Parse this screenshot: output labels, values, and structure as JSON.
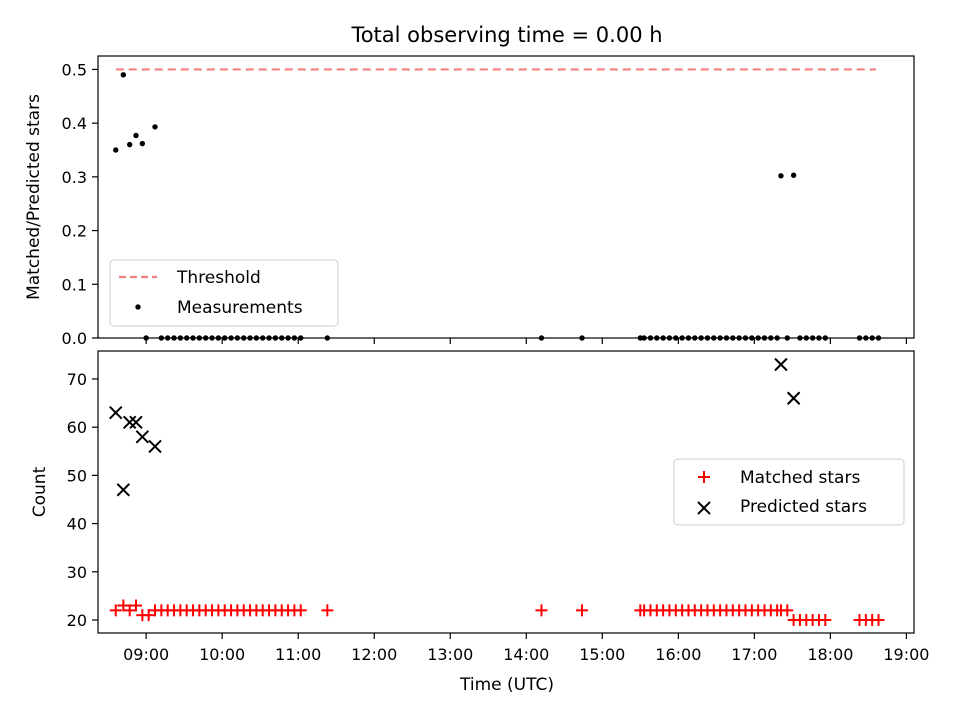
{
  "chart_data": [
    {
      "type": "scatter",
      "title": "Total observing time = 0.00 h",
      "xlabel": "",
      "ylabel": "Matched/Predicted stars",
      "xlim": [
        "08:22",
        "19:06"
      ],
      "ylim": [
        0,
        0.525
      ],
      "x_ticks": [
        "09:00",
        "10:00",
        "11:00",
        "12:00",
        "13:00",
        "14:00",
        "15:00",
        "16:00",
        "17:00",
        "18:00",
        "19:00"
      ],
      "y_ticks": [
        "0.0",
        "0.1",
        "0.2",
        "0.3",
        "0.4",
        "0.5"
      ],
      "legend_position": "lower-left",
      "grid": false,
      "threshold": {
        "name": "Threshold",
        "value": 0.5,
        "x": [
          "08:36",
          "18:36"
        ],
        "color": "#f08080",
        "style": "dashed"
      },
      "series": [
        {
          "name": "Measurements",
          "color": "#000000",
          "marker": "dot",
          "points": [
            [
              "08:36",
              0.35
            ],
            [
              "08:42",
              0.49
            ],
            [
              "08:47",
              0.36
            ],
            [
              "08:52",
              0.377
            ],
            [
              "08:57",
              0.362
            ],
            [
              "09:07",
              0.393
            ],
            [
              "09:00",
              0.0
            ],
            [
              "09:12",
              0.0
            ],
            [
              "09:17",
              0.0
            ],
            [
              "09:22",
              0.0
            ],
            [
              "09:27",
              0.0
            ],
            [
              "09:32",
              0.0
            ],
            [
              "09:37",
              0.0
            ],
            [
              "09:42",
              0.0
            ],
            [
              "09:47",
              0.0
            ],
            [
              "09:52",
              0.0
            ],
            [
              "09:57",
              0.0
            ],
            [
              "10:02",
              0.0
            ],
            [
              "10:07",
              0.0
            ],
            [
              "10:12",
              0.0
            ],
            [
              "10:17",
              0.0
            ],
            [
              "10:22",
              0.0
            ],
            [
              "10:27",
              0.0
            ],
            [
              "10:32",
              0.0
            ],
            [
              "10:37",
              0.0
            ],
            [
              "10:42",
              0.0
            ],
            [
              "10:47",
              0.0
            ],
            [
              "10:52",
              0.0
            ],
            [
              "10:57",
              0.0
            ],
            [
              "11:02",
              0.0
            ],
            [
              "11:23",
              0.0
            ],
            [
              "14:12",
              0.0
            ],
            [
              "14:44",
              0.0
            ],
            [
              "15:30",
              0.0
            ],
            [
              "15:33",
              0.0
            ],
            [
              "15:38",
              0.0
            ],
            [
              "15:43",
              0.0
            ],
            [
              "15:48",
              0.0
            ],
            [
              "15:53",
              0.0
            ],
            [
              "15:58",
              0.0
            ],
            [
              "16:03",
              0.0
            ],
            [
              "16:08",
              0.0
            ],
            [
              "16:13",
              0.0
            ],
            [
              "16:18",
              0.0
            ],
            [
              "16:23",
              0.0
            ],
            [
              "16:28",
              0.0
            ],
            [
              "16:33",
              0.0
            ],
            [
              "16:38",
              0.0
            ],
            [
              "16:43",
              0.0
            ],
            [
              "16:48",
              0.0
            ],
            [
              "16:53",
              0.0
            ],
            [
              "16:58",
              0.0
            ],
            [
              "17:03",
              0.0
            ],
            [
              "17:08",
              0.0
            ],
            [
              "17:13",
              0.0
            ],
            [
              "17:18",
              0.0
            ],
            [
              "17:21",
              0.302
            ],
            [
              "17:31",
              0.303
            ],
            [
              "17:26",
              0.0
            ],
            [
              "17:36",
              0.0
            ],
            [
              "17:41",
              0.0
            ],
            [
              "17:46",
              0.0
            ],
            [
              "17:51",
              0.0
            ],
            [
              "17:56",
              0.0
            ],
            [
              "18:23",
              0.0
            ],
            [
              "18:28",
              0.0
            ],
            [
              "18:33",
              0.0
            ],
            [
              "18:38",
              0.0
            ]
          ]
        }
      ]
    },
    {
      "type": "scatter",
      "title": "",
      "xlabel": "Time (UTC)",
      "ylabel": "Count",
      "xlim": [
        "08:22",
        "19:06"
      ],
      "ylim": [
        17.3,
        75.8
      ],
      "x_ticks": [
        "09:00",
        "10:00",
        "11:00",
        "12:00",
        "13:00",
        "14:00",
        "15:00",
        "16:00",
        "17:00",
        "18:00",
        "19:00"
      ],
      "y_ticks": [
        "20",
        "30",
        "40",
        "50",
        "60",
        "70"
      ],
      "legend_position": "center-right",
      "grid": false,
      "series": [
        {
          "name": "Matched stars",
          "color": "#ff0000",
          "marker": "plus",
          "points": [
            [
              "08:36",
              22
            ],
            [
              "08:42",
              23
            ],
            [
              "08:47",
              22
            ],
            [
              "08:52",
              23
            ],
            [
              "08:57",
              21
            ],
            [
              "09:02",
              21
            ],
            [
              "09:07",
              22
            ],
            [
              "09:12",
              22
            ],
            [
              "09:17",
              22
            ],
            [
              "09:22",
              22
            ],
            [
              "09:27",
              22
            ],
            [
              "09:32",
              22
            ],
            [
              "09:37",
              22
            ],
            [
              "09:42",
              22
            ],
            [
              "09:47",
              22
            ],
            [
              "09:52",
              22
            ],
            [
              "09:57",
              22
            ],
            [
              "10:02",
              22
            ],
            [
              "10:07",
              22
            ],
            [
              "10:12",
              22
            ],
            [
              "10:17",
              22
            ],
            [
              "10:22",
              22
            ],
            [
              "10:27",
              22
            ],
            [
              "10:32",
              22
            ],
            [
              "10:37",
              22
            ],
            [
              "10:42",
              22
            ],
            [
              "10:47",
              22
            ],
            [
              "10:52",
              22
            ],
            [
              "10:57",
              22
            ],
            [
              "11:02",
              22
            ],
            [
              "11:23",
              22
            ],
            [
              "14:12",
              22
            ],
            [
              "14:44",
              22
            ],
            [
              "15:30",
              22
            ],
            [
              "15:33",
              22
            ],
            [
              "15:38",
              22
            ],
            [
              "15:43",
              22
            ],
            [
              "15:48",
              22
            ],
            [
              "15:53",
              22
            ],
            [
              "15:58",
              22
            ],
            [
              "16:03",
              22
            ],
            [
              "16:08",
              22
            ],
            [
              "16:13",
              22
            ],
            [
              "16:18",
              22
            ],
            [
              "16:23",
              22
            ],
            [
              "16:28",
              22
            ],
            [
              "16:33",
              22
            ],
            [
              "16:38",
              22
            ],
            [
              "16:43",
              22
            ],
            [
              "16:48",
              22
            ],
            [
              "16:53",
              22
            ],
            [
              "16:58",
              22
            ],
            [
              "17:03",
              22
            ],
            [
              "17:08",
              22
            ],
            [
              "17:13",
              22
            ],
            [
              "17:18",
              22
            ],
            [
              "17:21",
              22
            ],
            [
              "17:26",
              22
            ],
            [
              "17:31",
              20
            ],
            [
              "17:36",
              20
            ],
            [
              "17:41",
              20
            ],
            [
              "17:46",
              20
            ],
            [
              "17:51",
              20
            ],
            [
              "17:56",
              20
            ],
            [
              "18:23",
              20
            ],
            [
              "18:28",
              20
            ],
            [
              "18:33",
              20
            ],
            [
              "18:38",
              20
            ]
          ]
        },
        {
          "name": "Predicted stars",
          "color": "#000000",
          "marker": "x",
          "points": [
            [
              "08:36",
              63
            ],
            [
              "08:42",
              47
            ],
            [
              "08:47",
              61
            ],
            [
              "08:52",
              61
            ],
            [
              "08:57",
              58
            ],
            [
              "09:07",
              56
            ],
            [
              "17:21",
              73
            ],
            [
              "17:31",
              66
            ]
          ]
        }
      ]
    }
  ]
}
